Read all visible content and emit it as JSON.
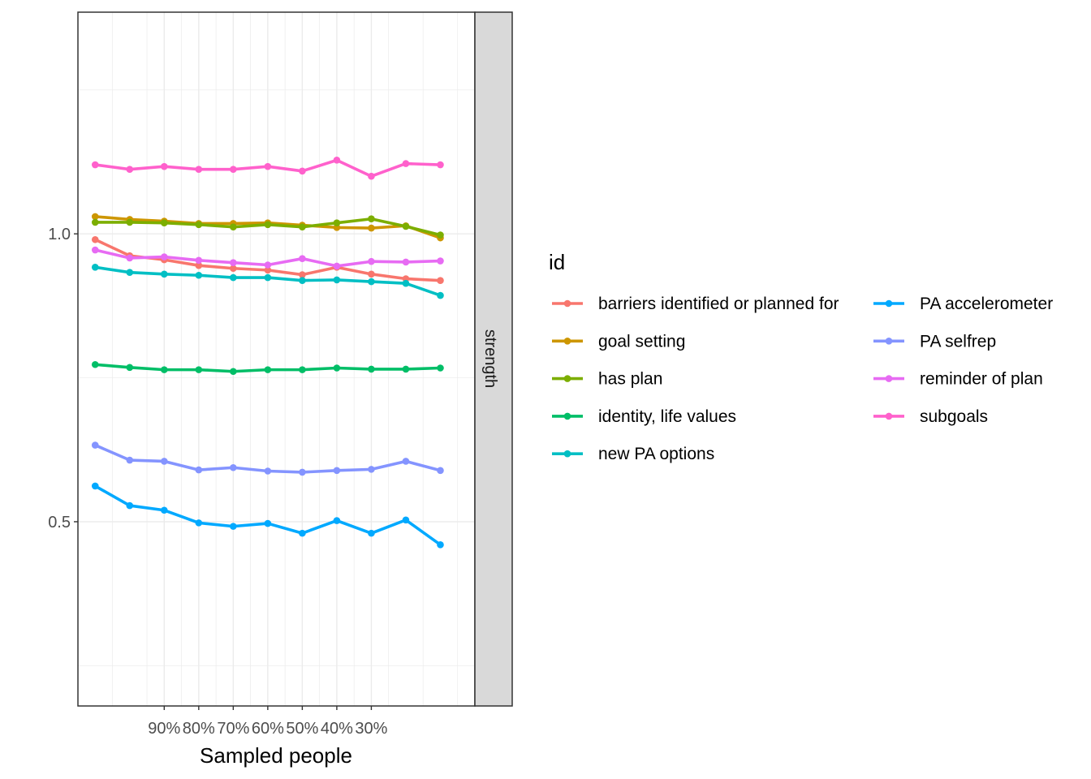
{
  "chart_data": {
    "type": "line",
    "facet_label": "strength",
    "xlabel": "Sampled people",
    "ylabel": "",
    "x": [
      1,
      2,
      3,
      4,
      5,
      6,
      7,
      8,
      9,
      10,
      11
    ],
    "x_tick_labels": [
      {
        "x": 3,
        "label": "90%"
      },
      {
        "x": 4,
        "label": "80%"
      },
      {
        "x": 5,
        "label": "70%"
      },
      {
        "x": 6,
        "label": "60%"
      },
      {
        "x": 7,
        "label": "50%"
      },
      {
        "x": 8,
        "label": "40%"
      },
      {
        "x": 9,
        "label": "30%"
      }
    ],
    "xlim": [
      0.5,
      12
    ],
    "ylim": [
      0.18,
      1.385
    ],
    "y_ticks": [
      0.5,
      1.0
    ],
    "y_tick_labels": [
      "0.5",
      "1.0"
    ],
    "grid": true,
    "legend_title": "id",
    "legend_position": "right",
    "series": [
      {
        "name": "barriers identified or planned for",
        "color": "#F8766D",
        "values": [
          0.99,
          0.962,
          0.955,
          0.945,
          0.94,
          0.937,
          0.929,
          0.942,
          0.93,
          0.922,
          0.919
        ]
      },
      {
        "name": "goal setting",
        "color": "#CD9600",
        "values": [
          1.03,
          1.025,
          1.022,
          1.018,
          1.018,
          1.019,
          1.015,
          1.011,
          1.01,
          1.014,
          0.993
        ]
      },
      {
        "name": "has plan",
        "color": "#7CAE00",
        "values": [
          1.02,
          1.02,
          1.019,
          1.016,
          1.012,
          1.016,
          1.012,
          1.019,
          1.026,
          1.013,
          0.998
        ]
      },
      {
        "name": "identity, life values",
        "color": "#00BE67",
        "values": [
          0.773,
          0.768,
          0.764,
          0.764,
          0.761,
          0.764,
          0.764,
          0.767,
          0.765,
          0.765,
          0.767
        ]
      },
      {
        "name": "new PA options",
        "color": "#00BFC4",
        "values": [
          0.942,
          0.933,
          0.93,
          0.928,
          0.924,
          0.924,
          0.919,
          0.92,
          0.917,
          0.914,
          0.893
        ]
      },
      {
        "name": "PA accelerometer",
        "color": "#00A9FF",
        "values": [
          0.562,
          0.528,
          0.52,
          0.498,
          0.492,
          0.497,
          0.48,
          0.502,
          0.48,
          0.503,
          0.46
        ]
      },
      {
        "name": "PA selfrep",
        "color": "#8494FF",
        "values": [
          0.633,
          0.607,
          0.605,
          0.59,
          0.594,
          0.588,
          0.586,
          0.589,
          0.591,
          0.605,
          0.589
        ]
      },
      {
        "name": "reminder of plan",
        "color": "#E76BF3",
        "values": [
          0.972,
          0.958,
          0.96,
          0.954,
          0.95,
          0.946,
          0.957,
          0.944,
          0.952,
          0.951,
          0.953
        ]
      },
      {
        "name": "subgoals",
        "color": "#FF61CC",
        "values": [
          1.12,
          1.112,
          1.117,
          1.112,
          1.112,
          1.117,
          1.109,
          1.128,
          1.1,
          1.122,
          1.12
        ]
      }
    ]
  }
}
